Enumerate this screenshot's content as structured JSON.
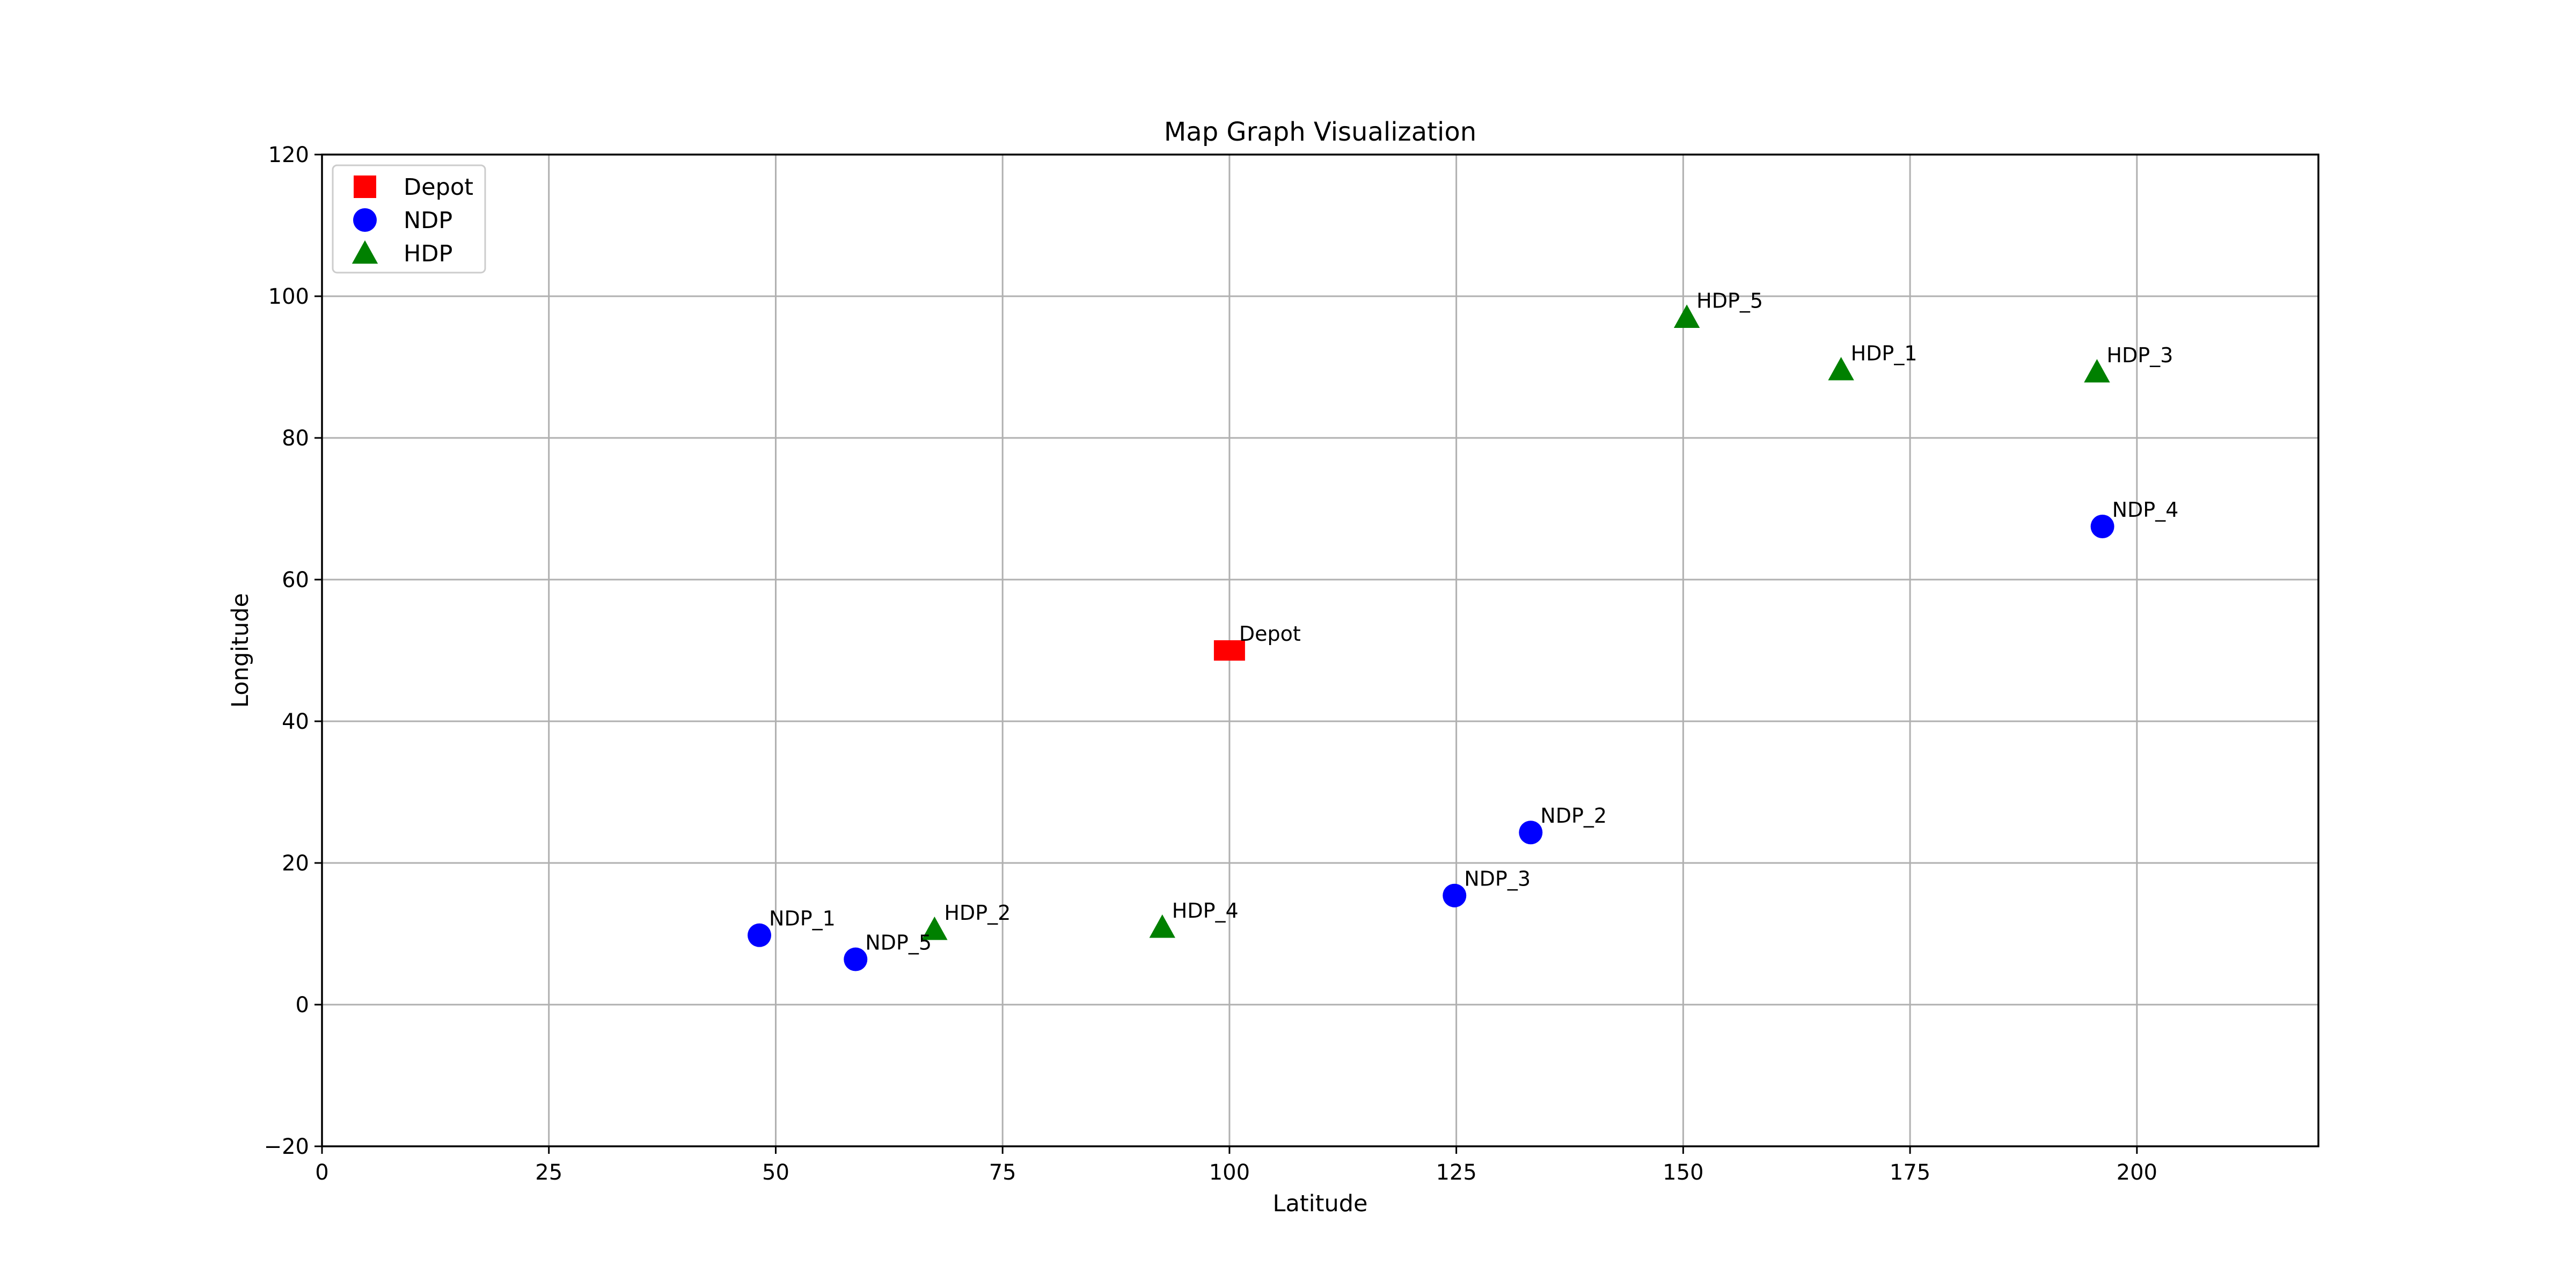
{
  "chart_data": {
    "type": "scatter",
    "title": "Map Graph Visualization",
    "xlabel": "Latitude",
    "ylabel": "Longitude",
    "xlim": [
      0,
      220
    ],
    "ylim": [
      -20,
      120
    ],
    "x_ticks": [
      0,
      25,
      50,
      75,
      100,
      125,
      150,
      175,
      200
    ],
    "y_ticks": [
      -20,
      0,
      20,
      40,
      60,
      80,
      100,
      120
    ],
    "grid": true,
    "legend_position": "top-left",
    "series": [
      {
        "name": "Depot",
        "marker": "square",
        "color": "#ff0000",
        "points": [
          {
            "label": "Depot",
            "x": 100,
            "y": 50
          }
        ]
      },
      {
        "name": "NDP",
        "marker": "circle",
        "color": "#0000ff",
        "points": [
          {
            "label": "NDP_1",
            "x": 48.2,
            "y": 9.8
          },
          {
            "label": "NDP_2",
            "x": 133.2,
            "y": 24.3
          },
          {
            "label": "NDP_3",
            "x": 124.8,
            "y": 15.4
          },
          {
            "label": "NDP_4",
            "x": 196.2,
            "y": 67.5
          },
          {
            "label": "NDP_5",
            "x": 58.8,
            "y": 6.4
          }
        ]
      },
      {
        "name": "HDP",
        "marker": "triangle",
        "color": "#008000",
        "points": [
          {
            "label": "HDP_1",
            "x": 167.4,
            "y": 89.6
          },
          {
            "label": "HDP_2",
            "x": 67.5,
            "y": 10.6
          },
          {
            "label": "HDP_3",
            "x": 195.6,
            "y": 89.3
          },
          {
            "label": "HDP_4",
            "x": 92.6,
            "y": 10.9
          },
          {
            "label": "HDP_5",
            "x": 150.4,
            "y": 97.0
          }
        ]
      }
    ]
  }
}
